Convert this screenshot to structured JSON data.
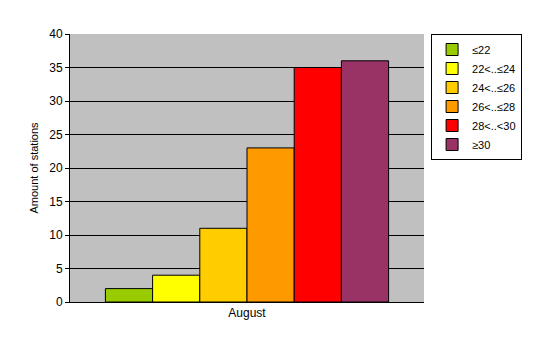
{
  "chart_data": {
    "type": "bar",
    "y_label": "Amount of stations",
    "categories": [
      "August"
    ],
    "series": [
      {
        "name": "≤22",
        "color": "#99cc00",
        "values": [
          2
        ]
      },
      {
        "name": "22<..≤24",
        "color": "#ffff00",
        "values": [
          4
        ]
      },
      {
        "name": "24<..≤26",
        "color": "#ffcc00",
        "values": [
          11
        ]
      },
      {
        "name": "26<..≤28",
        "color": "#ff9900",
        "values": [
          23
        ]
      },
      {
        "name": "28<..<30",
        "color": "#ff0000",
        "values": [
          35
        ]
      },
      {
        "name": "≥30",
        "color": "#993366",
        "values": [
          36
        ]
      }
    ],
    "ylim": [
      0,
      40
    ],
    "yticks": [
      0,
      5,
      10,
      15,
      20,
      25,
      30,
      35,
      40
    ],
    "grid": true,
    "legend": "top right"
  }
}
